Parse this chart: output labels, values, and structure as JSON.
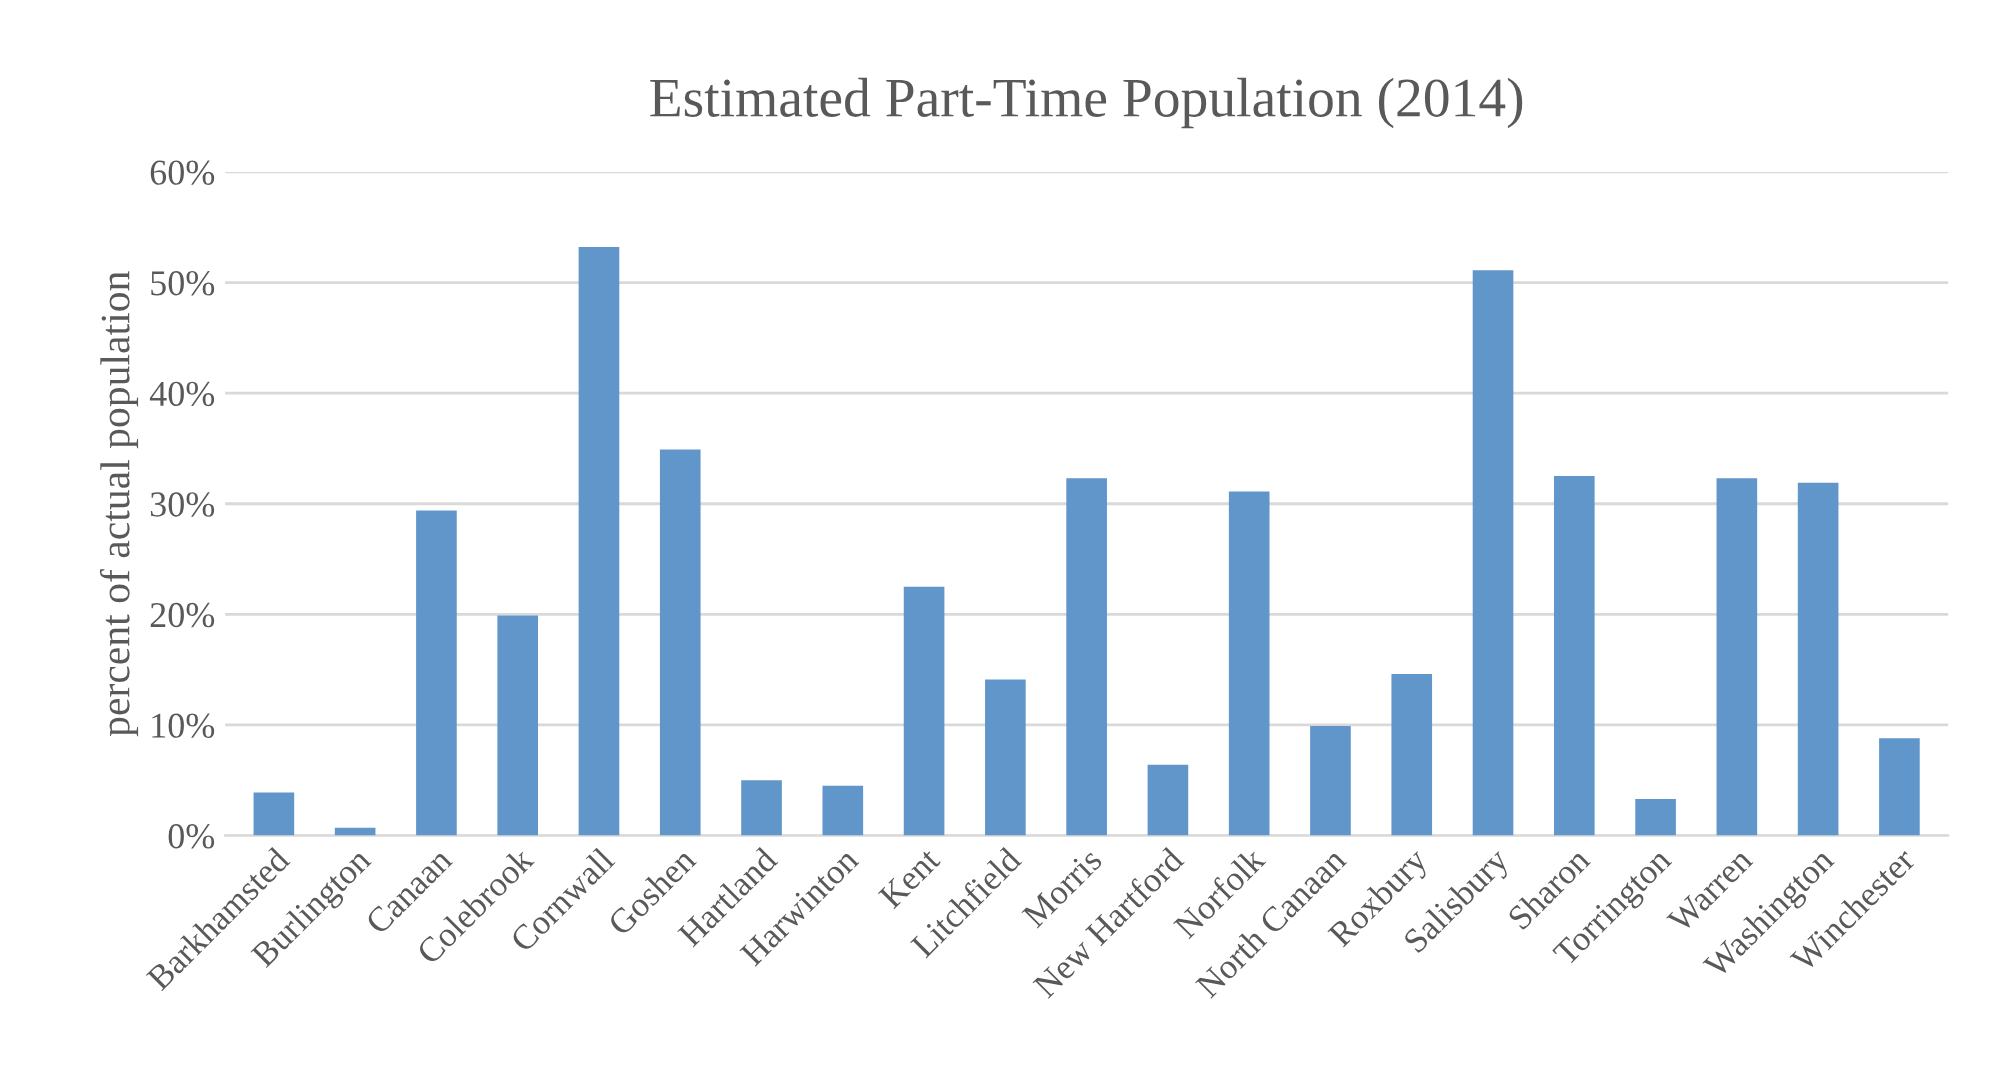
{
  "chart_data": {
    "type": "bar",
    "title": "Estimated Part-Time Population (2014)",
    "ylabel": "percent of actual population",
    "categories": [
      "Barkhamsted",
      "Burlington",
      "Canaan",
      "Colebrook",
      "Cornwall",
      "Goshen",
      "Hartland",
      "Harwinton",
      "Kent",
      "Litchfield",
      "Morris",
      "New Hartford",
      "Norfolk",
      "North Canaan",
      "Roxbury",
      "Salisbury",
      "Sharon",
      "Torrington",
      "Warren",
      "Washington",
      "Winchester"
    ],
    "values": [
      3.9,
      0.7,
      29.4,
      19.9,
      53.2,
      34.9,
      5.0,
      4.5,
      22.5,
      14.1,
      32.3,
      6.4,
      31.1,
      9.9,
      14.6,
      51.1,
      32.5,
      3.3,
      32.3,
      31.9,
      8.8
    ],
    "color": "#6096c9",
    "ylim": [
      0,
      60
    ],
    "yticks": [
      {
        "value": 0,
        "label": "0%"
      },
      {
        "value": 10,
        "label": "10%"
      },
      {
        "value": 20,
        "label": "20%"
      },
      {
        "value": 30,
        "label": "30%"
      },
      {
        "value": 40,
        "label": "40%"
      },
      {
        "value": 50,
        "label": "50%"
      },
      {
        "value": 60,
        "label": "60%"
      }
    ],
    "grid": "y",
    "legend": false
  }
}
